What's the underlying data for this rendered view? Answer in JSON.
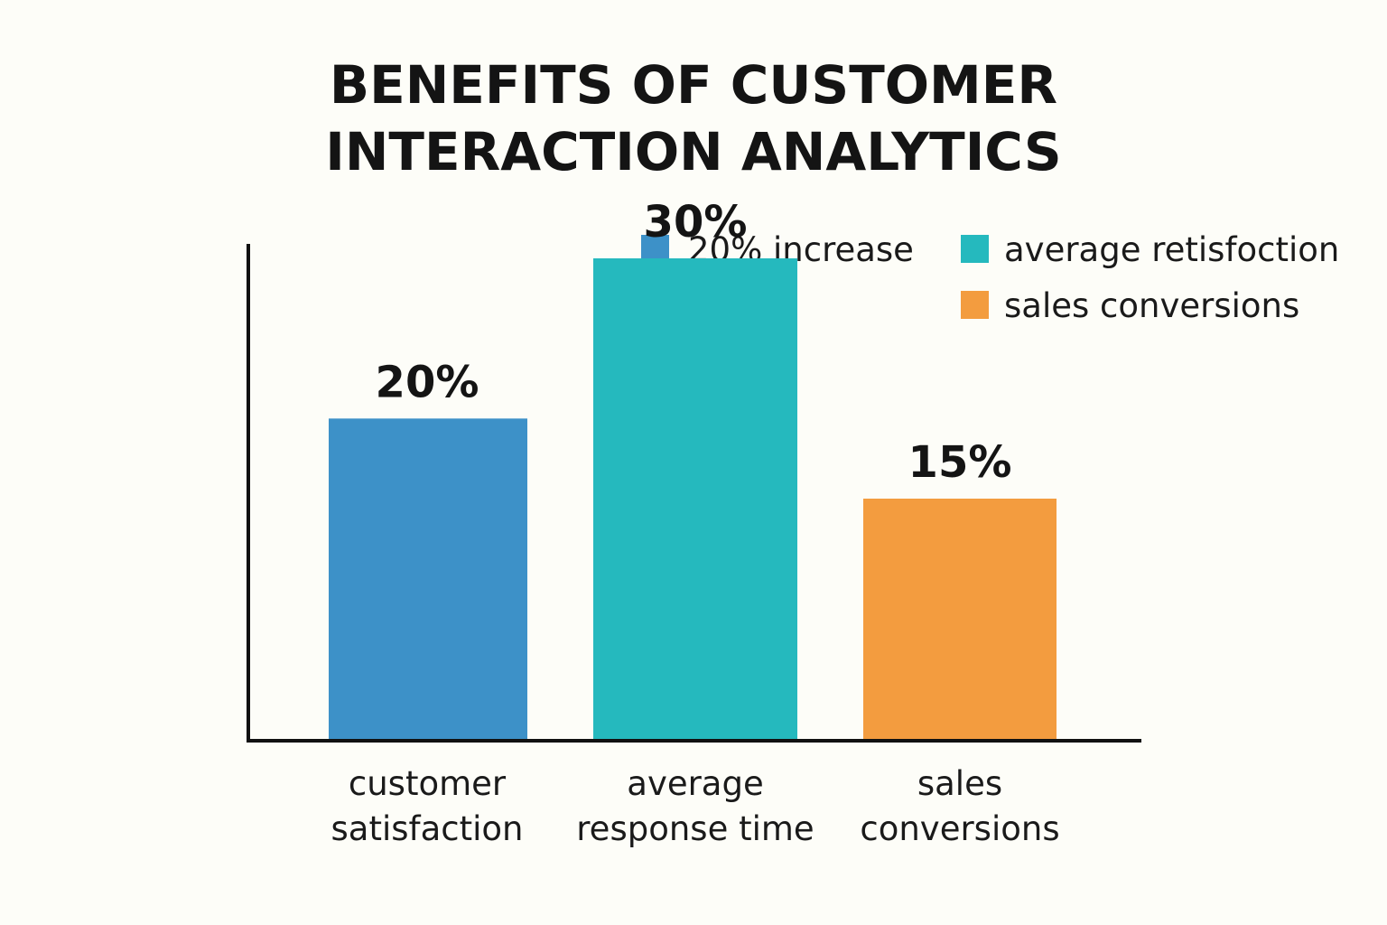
{
  "chart_data": {
    "type": "bar",
    "title_lines": [
      "BENEFITS OF CUSTOMER",
      "INTERACTION ANALYTICS"
    ],
    "categories": [
      [
        "customer",
        "satisfaction"
      ],
      [
        "average",
        "response time"
      ],
      [
        "sales",
        "conversions"
      ]
    ],
    "values": [
      20,
      30,
      15
    ],
    "value_labels": [
      "20%",
      "30%",
      "15%"
    ],
    "bar_colors": [
      "#3d91c8",
      "#25b9be",
      "#f39c3f"
    ],
    "ylim": [
      0,
      45
    ],
    "grid": false,
    "legend": {
      "placement": "top-right",
      "entries": [
        {
          "label": "20% increase",
          "color": "#3d91c8"
        },
        {
          "label": "average retisfoction",
          "color": "#25b9be"
        },
        {
          "label": "sales conversions",
          "color": "#f39c3f"
        }
      ]
    }
  }
}
